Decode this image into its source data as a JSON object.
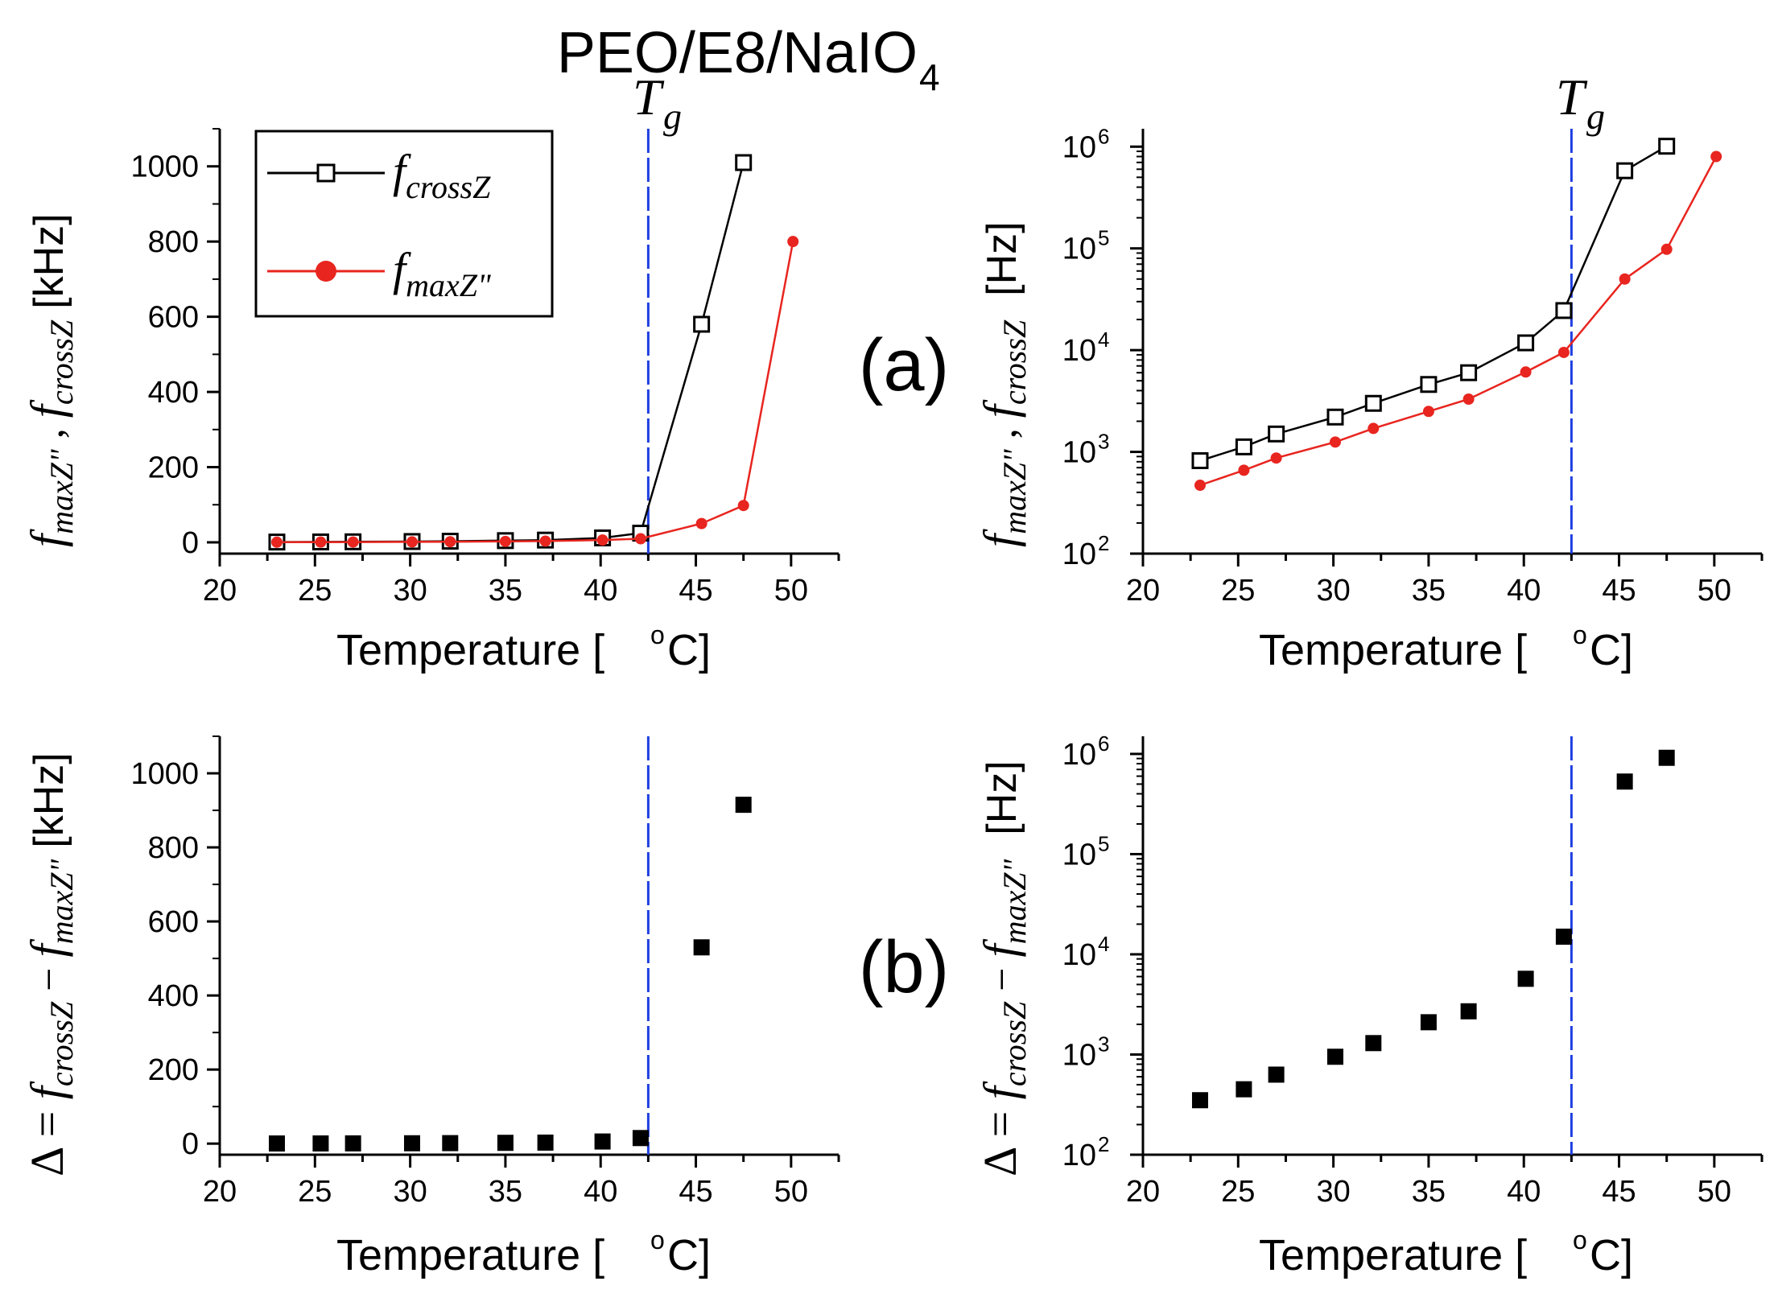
{
  "title": {
    "main": "PEO/E8/NaIO",
    "sub": "4"
  },
  "colors": {
    "cross": "#000000",
    "max": "#e8251f",
    "tg": "#1f3fe0",
    "delta": "#000000"
  },
  "tg_value": 42.5,
  "tg_label": {
    "T": "T",
    "g": "g"
  },
  "panel_labels": {
    "a": "(a)",
    "b": "(b)"
  },
  "legend": {
    "cross": {
      "f": "f",
      "sub": "crossZ"
    },
    "max": {
      "f": "f",
      "sub": "maxZ\""
    }
  },
  "axes": {
    "xlabel": "Temperature [",
    "xlabel_deg": "o",
    "xlabel_end": "C]",
    "ylabel_a_left": {
      "f1": "f",
      "s1": "maxZ\"",
      "sep": " , ",
      "f2": "f",
      "s2": "crossZ",
      "unit": "[kHz]"
    },
    "ylabel_a_right": {
      "f1": "f",
      "s1": "maxZ\"",
      "sep": " , ",
      "f2": "f",
      "s2": "crossZ",
      "unit": "[Hz]"
    },
    "ylabel_b_left": {
      "pre": "Δ = ",
      "f1": "f",
      "s1": "crossZ",
      "minus": " − ",
      "f2": "f",
      "s2": "maxZ\"",
      "unit": "[kHz]"
    },
    "ylabel_b_right": {
      "pre": "Δ = ",
      "f1": "f",
      "s1": "crossZ",
      "minus": " − ",
      "f2": "f",
      "s2": "maxZ\"",
      "unit": "[Hz]"
    }
  },
  "chart_data": [
    {
      "id": "a-linear",
      "type": "line",
      "yscale": "linear",
      "xlim": [
        20,
        52.5
      ],
      "ylim": [
        -30,
        1100
      ],
      "xticks": [
        "20",
        "25",
        "30",
        "35",
        "40",
        "45",
        "50"
      ],
      "yticks": [
        "0",
        "200",
        "400",
        "600",
        "800",
        "1000"
      ],
      "ylabel_unit": "kHz",
      "series": [
        {
          "name": "fcrossZ",
          "x": [
            23,
            25.3,
            27,
            30.1,
            32.1,
            35,
            37.1,
            40.1,
            42.1,
            45.3,
            47.5
          ],
          "values": [
            0.8,
            1.1,
            1.5,
            2.2,
            3,
            4.6,
            6,
            11.8,
            24.5,
            580,
            1010
          ]
        },
        {
          "name": "fmaxZ\"",
          "x": [
            23,
            25.3,
            27,
            30.1,
            32.1,
            35,
            37.1,
            40.1,
            42.1,
            45.3,
            47.5,
            50.1
          ],
          "values": [
            0.47,
            0.66,
            0.87,
            1.25,
            1.7,
            2.5,
            3.3,
            6.1,
            9.5,
            50,
            98,
            800
          ]
        }
      ]
    },
    {
      "id": "a-log",
      "type": "line",
      "yscale": "log",
      "xlim": [
        20,
        52.5
      ],
      "ylim": [
        100,
        1500000
      ],
      "xticks": [
        "20",
        "25",
        "30",
        "35",
        "40",
        "45",
        "50"
      ],
      "yticks": [
        "2",
        "3",
        "4",
        "5",
        "6"
      ],
      "ylabel_unit": "Hz",
      "series": [
        {
          "name": "fcrossZ",
          "x": [
            23,
            25.3,
            27,
            30.1,
            32.1,
            35,
            37.1,
            40.1,
            42.1,
            45.3,
            47.5
          ],
          "values": [
            820,
            1120,
            1500,
            2200,
            3000,
            4600,
            6000,
            11800,
            24500,
            580000,
            1010000
          ]
        },
        {
          "name": "fmaxZ\"",
          "x": [
            23,
            25.3,
            27,
            30.1,
            32.1,
            35,
            37.1,
            40.1,
            42.1,
            45.3,
            47.5,
            50.1
          ],
          "values": [
            470,
            660,
            870,
            1250,
            1700,
            2500,
            3300,
            6100,
            9500,
            50000,
            98000,
            800000
          ]
        }
      ]
    },
    {
      "id": "b-linear",
      "type": "scatter",
      "yscale": "linear",
      "xlim": [
        20,
        52.5
      ],
      "ylim": [
        -30,
        1100
      ],
      "xticks": [
        "20",
        "25",
        "30",
        "35",
        "40",
        "45",
        "50"
      ],
      "yticks": [
        "0",
        "200",
        "400",
        "600",
        "800",
        "1000"
      ],
      "ylabel_unit": "kHz",
      "series": [
        {
          "name": "Δ",
          "x": [
            23,
            25.3,
            27,
            30.1,
            32.1,
            35,
            37.1,
            40.1,
            42.1,
            45.3,
            47.5
          ],
          "values": [
            0.35,
            0.45,
            0.63,
            0.95,
            1.3,
            2.1,
            2.7,
            5.7,
            15,
            530,
            915
          ]
        }
      ]
    },
    {
      "id": "b-log",
      "type": "scatter",
      "yscale": "log",
      "xlim": [
        20,
        52.5
      ],
      "ylim": [
        100,
        1500000
      ],
      "xticks": [
        "20",
        "25",
        "30",
        "35",
        "40",
        "45",
        "50"
      ],
      "yticks": [
        "2",
        "3",
        "4",
        "5",
        "6"
      ],
      "ylabel_unit": "Hz",
      "series": [
        {
          "name": "Δ",
          "x": [
            23,
            25.3,
            27,
            30.1,
            32.1,
            35,
            37.1,
            40.1,
            42.1,
            45.3,
            47.5
          ],
          "values": [
            350,
            450,
            630,
            950,
            1300,
            2100,
            2700,
            5700,
            15000,
            530000,
            915000
          ]
        }
      ]
    }
  ]
}
